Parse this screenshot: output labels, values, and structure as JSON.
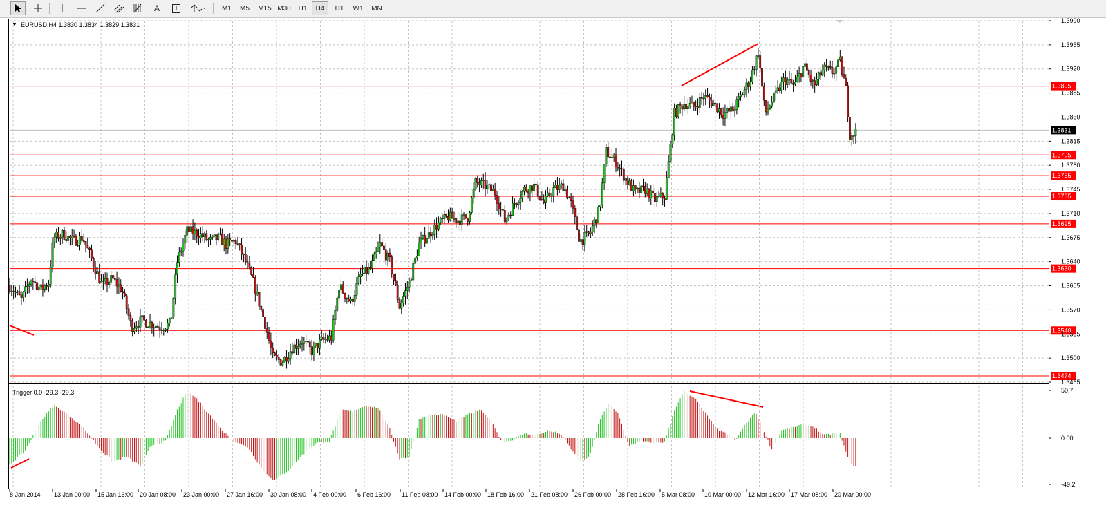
{
  "toolbar": {
    "tools": [
      {
        "name": "cursor-icon"
      },
      {
        "name": "crosshair-icon"
      },
      {
        "name": "vertical-line-icon"
      },
      {
        "name": "horizontal-line-icon"
      },
      {
        "name": "trendline-icon"
      },
      {
        "name": "equidistant-channel-icon"
      },
      {
        "name": "fibonacci-icon"
      },
      {
        "name": "text-icon"
      },
      {
        "name": "text-label-icon"
      },
      {
        "name": "arrows-icon"
      }
    ],
    "text_tool": "A",
    "label_tool": "T",
    "timeframes": [
      "M1",
      "M5",
      "M15",
      "M30",
      "H1",
      "H4",
      "D1",
      "W1",
      "MN"
    ],
    "selected_timeframe": "H4"
  },
  "main_panel": {
    "header": "EURUSD,H4  1.3830 1.3834 1.3829 1.3831",
    "price_ticks": [
      "1.3990",
      "1.3955",
      "1.3920",
      "1.3885",
      "1.3850",
      "1.3815",
      "1.3780",
      "1.3745",
      "1.3710",
      "1.3675",
      "1.3640",
      "1.3605",
      "1.3570",
      "1.3535",
      "1.3500",
      "1.3465"
    ],
    "current_price": "1.3831",
    "levels": [
      "1.3895",
      "1.3795",
      "1.3765",
      "1.3735",
      "1.3695",
      "1.3630",
      "1.3540",
      "1.3474"
    ]
  },
  "indicator_panel": {
    "header": "Trigger 0.0 -29.3 -29.3",
    "ticks": [
      "50.7",
      "0.00",
      "-49.2"
    ]
  },
  "time_axis": [
    "8 Jan 2014",
    "13 Jan 00:00",
    "15 Jan 16:00",
    "20 Jan 08:00",
    "23 Jan 00:00",
    "27 Jan 16:00",
    "30 Jan 08:00",
    "4 Feb 00:00",
    "6 Feb 16:00",
    "11 Feb 08:00",
    "14 Feb 00:00",
    "18 Feb 16:00",
    "21 Feb 08:00",
    "26 Feb 00:00",
    "28 Feb 16:00",
    "5 Mar 08:00",
    "10 Mar 00:00",
    "12 Mar 16:00",
    "17 Mar 08:00",
    "20 Mar 00:00"
  ],
  "colors": {
    "bull": "#22c322",
    "bear": "#c11414",
    "level": "#ff0000",
    "grid": "#c4c4c4",
    "current_price_bg": "#000000"
  },
  "chart_data": {
    "type": "candlestick",
    "symbol": "EURUSD",
    "timeframe": "H4",
    "ylim": [
      1.3465,
      1.399
    ],
    "ohlc_last": {
      "open": 1.383,
      "high": 1.3834,
      "low": 1.3829,
      "close": 1.3831
    },
    "horizontal_levels": [
      1.3895,
      1.3795,
      1.3765,
      1.3735,
      1.3695,
      1.363,
      1.354,
      1.3474
    ],
    "price_path": [
      {
        "x": 0,
        "p": 1.3605
      },
      {
        "x": 12,
        "p": 1.3585
      },
      {
        "x": 22,
        "p": 1.3615
      },
      {
        "x": 32,
        "p": 1.36
      },
      {
        "x": 40,
        "p": 1.361
      },
      {
        "x": 45,
        "p": 1.3675
      },
      {
        "x": 55,
        "p": 1.368
      },
      {
        "x": 65,
        "p": 1.367
      },
      {
        "x": 75,
        "p": 1.3675
      },
      {
        "x": 85,
        "p": 1.364
      },
      {
        "x": 95,
        "p": 1.3605
      },
      {
        "x": 105,
        "p": 1.3615
      },
      {
        "x": 115,
        "p": 1.36
      },
      {
        "x": 125,
        "p": 1.3545
      },
      {
        "x": 135,
        "p": 1.3555
      },
      {
        "x": 145,
        "p": 1.355
      },
      {
        "x": 155,
        "p": 1.3545
      },
      {
        "x": 165,
        "p": 1.355
      },
      {
        "x": 172,
        "p": 1.364
      },
      {
        "x": 182,
        "p": 1.3685
      },
      {
        "x": 195,
        "p": 1.368
      },
      {
        "x": 205,
        "p": 1.367
      },
      {
        "x": 215,
        "p": 1.3675
      },
      {
        "x": 222,
        "p": 1.3665
      },
      {
        "x": 232,
        "p": 1.367
      },
      {
        "x": 242,
        "p": 1.364
      },
      {
        "x": 250,
        "p": 1.361
      },
      {
        "x": 262,
        "p": 1.355
      },
      {
        "x": 270,
        "p": 1.35
      },
      {
        "x": 280,
        "p": 1.3495
      },
      {
        "x": 290,
        "p": 1.3515
      },
      {
        "x": 300,
        "p": 1.3525
      },
      {
        "x": 310,
        "p": 1.351
      },
      {
        "x": 320,
        "p": 1.3525
      },
      {
        "x": 330,
        "p": 1.353
      },
      {
        "x": 338,
        "p": 1.3605
      },
      {
        "x": 350,
        "p": 1.358
      },
      {
        "x": 360,
        "p": 1.362
      },
      {
        "x": 370,
        "p": 1.363
      },
      {
        "x": 380,
        "p": 1.3665
      },
      {
        "x": 390,
        "p": 1.364
      },
      {
        "x": 400,
        "p": 1.3575
      },
      {
        "x": 410,
        "p": 1.361
      },
      {
        "x": 420,
        "p": 1.3665
      },
      {
        "x": 430,
        "p": 1.368
      },
      {
        "x": 440,
        "p": 1.3695
      },
      {
        "x": 450,
        "p": 1.3705
      },
      {
        "x": 460,
        "p": 1.37
      },
      {
        "x": 470,
        "p": 1.3705
      },
      {
        "x": 478,
        "p": 1.3755
      },
      {
        "x": 488,
        "p": 1.375
      },
      {
        "x": 498,
        "p": 1.374
      },
      {
        "x": 508,
        "p": 1.37
      },
      {
        "x": 518,
        "p": 1.3725
      },
      {
        "x": 528,
        "p": 1.3745
      },
      {
        "x": 538,
        "p": 1.375
      },
      {
        "x": 548,
        "p": 1.3725
      },
      {
        "x": 558,
        "p": 1.3745
      },
      {
        "x": 568,
        "p": 1.375
      },
      {
        "x": 575,
        "p": 1.373
      },
      {
        "x": 585,
        "p": 1.367
      },
      {
        "x": 595,
        "p": 1.368
      },
      {
        "x": 605,
        "p": 1.3715
      },
      {
        "x": 612,
        "p": 1.38
      },
      {
        "x": 622,
        "p": 1.3785
      },
      {
        "x": 632,
        "p": 1.376
      },
      {
        "x": 642,
        "p": 1.374
      },
      {
        "x": 652,
        "p": 1.3745
      },
      {
        "x": 662,
        "p": 1.373
      },
      {
        "x": 672,
        "p": 1.3735
      },
      {
        "x": 682,
        "p": 1.3855
      },
      {
        "x": 692,
        "p": 1.387
      },
      {
        "x": 702,
        "p": 1.3865
      },
      {
        "x": 712,
        "p": 1.388
      },
      {
        "x": 722,
        "p": 1.387
      },
      {
        "x": 732,
        "p": 1.3855
      },
      {
        "x": 742,
        "p": 1.386
      },
      {
        "x": 750,
        "p": 1.388
      },
      {
        "x": 760,
        "p": 1.3905
      },
      {
        "x": 768,
        "p": 1.3945
      },
      {
        "x": 775,
        "p": 1.3855
      },
      {
        "x": 785,
        "p": 1.388
      },
      {
        "x": 795,
        "p": 1.3905
      },
      {
        "x": 805,
        "p": 1.3895
      },
      {
        "x": 815,
        "p": 1.3925
      },
      {
        "x": 825,
        "p": 1.3895
      },
      {
        "x": 835,
        "p": 1.392
      },
      {
        "x": 845,
        "p": 1.3915
      },
      {
        "x": 852,
        "p": 1.393
      },
      {
        "x": 858,
        "p": 1.389
      },
      {
        "x": 862,
        "p": 1.3825
      },
      {
        "x": 868,
        "p": 1.3828
      }
    ],
    "indicator": {
      "name": "Trigger",
      "values": [
        0.0,
        -29.3,
        -29.3
      ],
      "ylim": [
        -49.2,
        50.7
      ],
      "path": [
        {
          "x": 0,
          "v": -28
        },
        {
          "x": 15,
          "v": -15
        },
        {
          "x": 30,
          "v": 15
        },
        {
          "x": 45,
          "v": 35
        },
        {
          "x": 60,
          "v": 25
        },
        {
          "x": 75,
          "v": 12
        },
        {
          "x": 90,
          "v": -8
        },
        {
          "x": 105,
          "v": -25
        },
        {
          "x": 120,
          "v": -20
        },
        {
          "x": 135,
          "v": -30
        },
        {
          "x": 145,
          "v": -8
        },
        {
          "x": 160,
          "v": -3
        },
        {
          "x": 172,
          "v": 30
        },
        {
          "x": 182,
          "v": 50
        },
        {
          "x": 192,
          "v": 42
        },
        {
          "x": 205,
          "v": 25
        },
        {
          "x": 218,
          "v": 8
        },
        {
          "x": 230,
          "v": -3
        },
        {
          "x": 245,
          "v": -10
        },
        {
          "x": 260,
          "v": -35
        },
        {
          "x": 272,
          "v": -45
        },
        {
          "x": 285,
          "v": -35
        },
        {
          "x": 300,
          "v": -18
        },
        {
          "x": 315,
          "v": -5
        },
        {
          "x": 328,
          "v": -3
        },
        {
          "x": 340,
          "v": 30
        },
        {
          "x": 352,
          "v": 28
        },
        {
          "x": 365,
          "v": 35
        },
        {
          "x": 378,
          "v": 32
        },
        {
          "x": 390,
          "v": 10
        },
        {
          "x": 400,
          "v": -22
        },
        {
          "x": 410,
          "v": -20
        },
        {
          "x": 420,
          "v": 20
        },
        {
          "x": 432,
          "v": 25
        },
        {
          "x": 445,
          "v": 25
        },
        {
          "x": 458,
          "v": 18
        },
        {
          "x": 470,
          "v": 25
        },
        {
          "x": 482,
          "v": 30
        },
        {
          "x": 495,
          "v": 18
        },
        {
          "x": 505,
          "v": -5
        },
        {
          "x": 515,
          "v": -2
        },
        {
          "x": 528,
          "v": 5
        },
        {
          "x": 540,
          "v": 3
        },
        {
          "x": 552,
          "v": 8
        },
        {
          "x": 565,
          "v": 5
        },
        {
          "x": 575,
          "v": -10
        },
        {
          "x": 585,
          "v": -25
        },
        {
          "x": 595,
          "v": -20
        },
        {
          "x": 605,
          "v": 18
        },
        {
          "x": 615,
          "v": 38
        },
        {
          "x": 625,
          "v": 25
        },
        {
          "x": 635,
          "v": -8
        },
        {
          "x": 648,
          "v": -3
        },
        {
          "x": 660,
          "v": -5
        },
        {
          "x": 672,
          "v": -4
        },
        {
          "x": 682,
          "v": 30
        },
        {
          "x": 692,
          "v": 50
        },
        {
          "x": 705,
          "v": 40
        },
        {
          "x": 715,
          "v": 25
        },
        {
          "x": 725,
          "v": 10
        },
        {
          "x": 735,
          "v": 5
        },
        {
          "x": 745,
          "v": -2
        },
        {
          "x": 755,
          "v": 15
        },
        {
          "x": 765,
          "v": 28
        },
        {
          "x": 775,
          "v": 5
        },
        {
          "x": 782,
          "v": -12
        },
        {
          "x": 792,
          "v": 8
        },
        {
          "x": 805,
          "v": 12
        },
        {
          "x": 815,
          "v": 15
        },
        {
          "x": 825,
          "v": 12
        },
        {
          "x": 835,
          "v": 3
        },
        {
          "x": 845,
          "v": 5
        },
        {
          "x": 852,
          "v": 5
        },
        {
          "x": 858,
          "v": -15
        },
        {
          "x": 863,
          "v": -28
        },
        {
          "x": 868,
          "v": -29.3
        }
      ]
    }
  }
}
